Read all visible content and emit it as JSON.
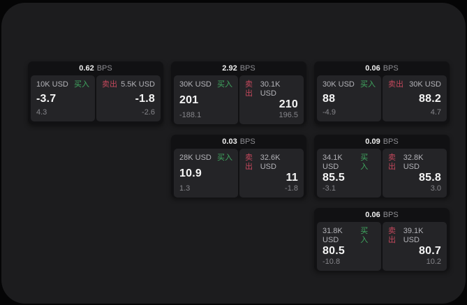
{
  "colors": {
    "buy_green": "#40a860",
    "sell_red": "#c4485c",
    "panel_bg": "#1c1c1e",
    "card_bg": "#111113",
    "pane_bg": "#242427"
  },
  "bps_unit_label": "BPS",
  "cards": [
    {
      "row": 1,
      "col": 1,
      "bps_value": "0.62",
      "bps_unit": "BPS",
      "buy": {
        "notional": "10K USD",
        "side_label": "买入",
        "price": "-3.7",
        "delta": "4.3"
      },
      "sell": {
        "side_label": "卖出",
        "notional": "5.5K USD",
        "price": "-1.8",
        "delta": "-2.6"
      }
    },
    {
      "row": 1,
      "col": 2,
      "bps_value": "2.92",
      "bps_unit": "BPS",
      "buy": {
        "notional": "30K USD",
        "side_label": "买入",
        "price": "201",
        "delta": "-188.1"
      },
      "sell": {
        "side_label": "卖出",
        "notional": "30.1K USD",
        "price": "210",
        "delta": "196.5"
      }
    },
    {
      "row": 1,
      "col": 3,
      "bps_value": "0.06",
      "bps_unit": "BPS",
      "buy": {
        "notional": "30K USD",
        "side_label": "买入",
        "price": "88",
        "delta": "-4.9"
      },
      "sell": {
        "side_label": "卖出",
        "notional": "30K USD",
        "price": "88.2",
        "delta": "4.7"
      }
    },
    {
      "row": 2,
      "col": 2,
      "bps_value": "0.03",
      "bps_unit": "BPS",
      "buy": {
        "notional": "28K USD",
        "side_label": "买入",
        "price": "10.9",
        "delta": "1.3"
      },
      "sell": {
        "side_label": "卖出",
        "notional": "32.6K USD",
        "price": "11",
        "delta": "-1.8"
      }
    },
    {
      "row": 2,
      "col": 3,
      "bps_value": "0.09",
      "bps_unit": "BPS",
      "buy": {
        "notional": "34.1K USD",
        "side_label": "买入",
        "price": "85.5",
        "delta": "-3.1"
      },
      "sell": {
        "side_label": "卖出",
        "notional": "32.8K USD",
        "price": "85.8",
        "delta": "3.0"
      }
    },
    {
      "row": 3,
      "col": 3,
      "bps_value": "0.06",
      "bps_unit": "BPS",
      "buy": {
        "notional": "31.8K USD",
        "side_label": "买入",
        "price": "80.5",
        "delta": "-10.8"
      },
      "sell": {
        "side_label": "卖出",
        "notional": "39.1K USD",
        "price": "80.7",
        "delta": "10.2"
      }
    }
  ]
}
